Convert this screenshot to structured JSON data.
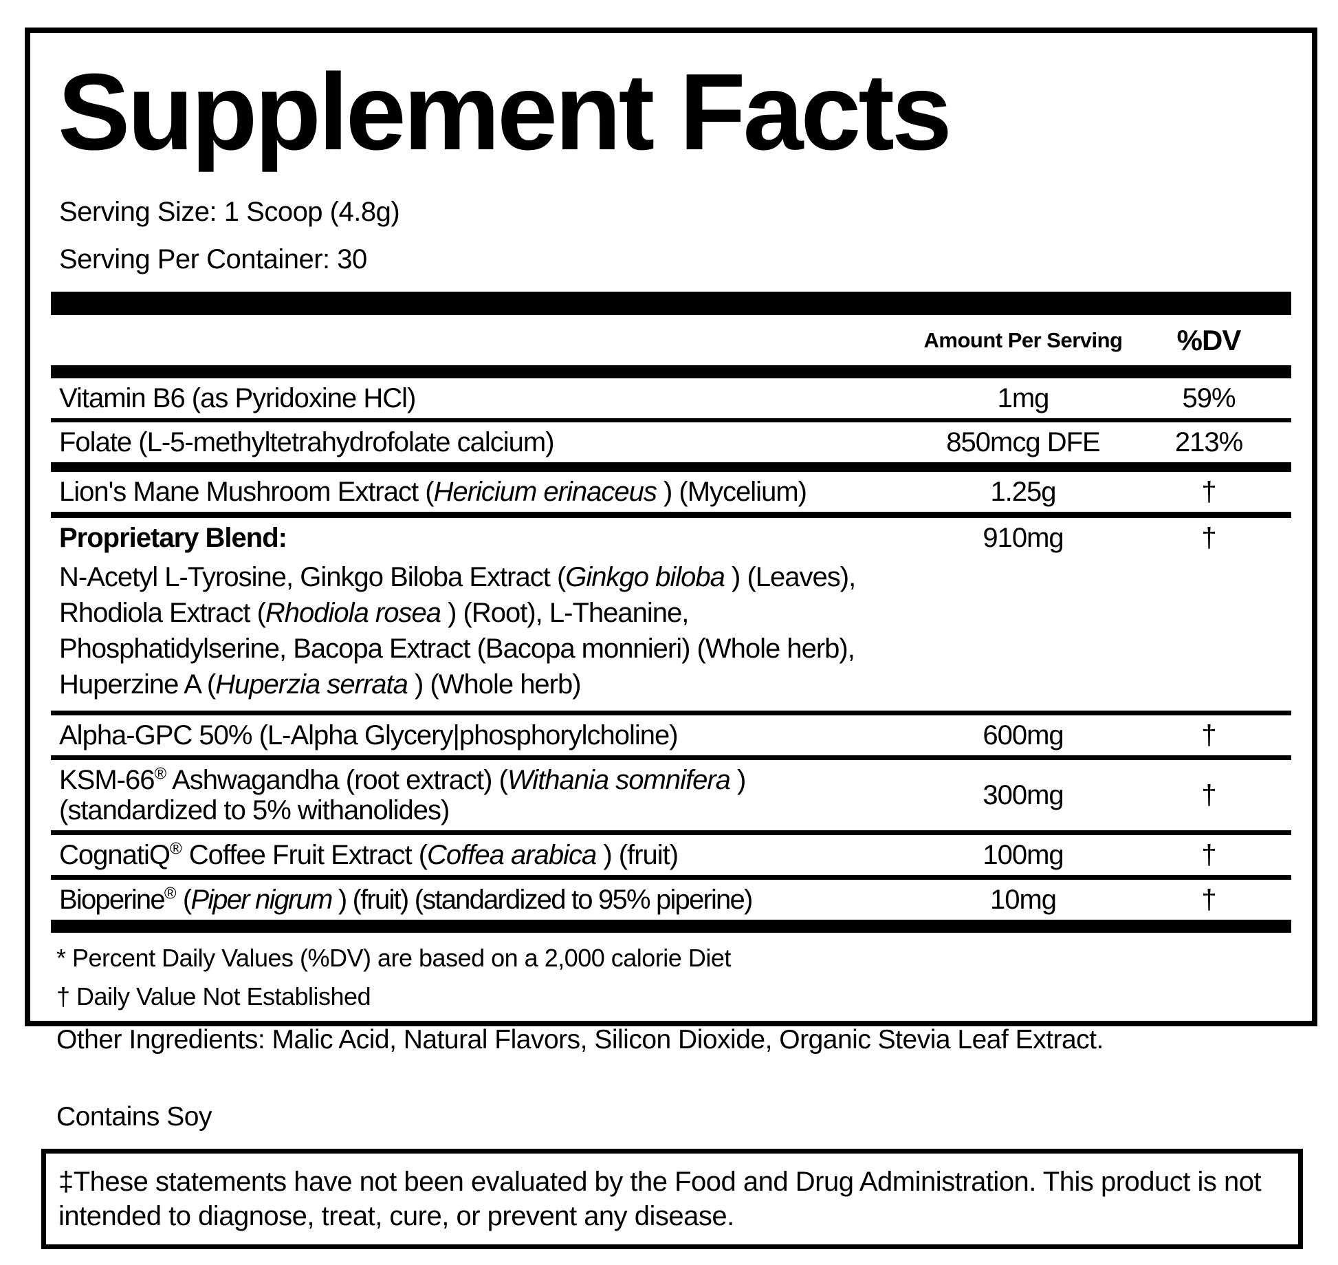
{
  "colors": {
    "ink": "#000000",
    "background": "#ffffff"
  },
  "panel": {
    "title": "Supplement Facts",
    "serving_size": "Serving Size: 1 Scoop (4.8g)",
    "servings_per_container": "Serving Per Container: 30",
    "columns": {
      "amount": "Amount Per Serving",
      "dv": "%DV"
    },
    "rows": {
      "vitamin_b6": {
        "name": "Vitamin B6 (as Pyridoxine HCl)",
        "amount": "1mg",
        "dv": "59%"
      },
      "folate": {
        "name": "Folate (L-5-methyltetrahydrofolate calcium)",
        "amount": "850mcg DFE",
        "dv": "213%"
      },
      "lions_mane": {
        "name_pre": "Lion's Mane Mushroom Extract (",
        "species": "Hericium erinaceus",
        "name_post": " ) (Mycelium)",
        "amount": "1.25g",
        "dv": "†"
      },
      "proprietary_blend": {
        "label": "Proprietary Blend:",
        "amount": "910mg",
        "dv": "†",
        "desc_1": "N-Acetyl L-Tyrosine, Ginkgo Biloba Extract (",
        "desc_species_1": "Ginkgo biloba",
        "desc_2": " ) (Leaves), Rhodiola Extract (",
        "desc_species_2": "Rhodiola rosea",
        "desc_3": " ) (Root), L-Theanine, Phosphatidylserine, Bacopa Extract (Bacopa monnieri) (Whole herb), Huperzine A (",
        "desc_species_3": "Huperzia serrata",
        "desc_4": " ) (Whole herb)"
      },
      "alpha_gpc": {
        "name": "Alpha-GPC 50% (L-Alpha Glycery|phosphorylcholine)",
        "amount": "600mg",
        "dv": "†"
      },
      "ksm66": {
        "brand": "KSM-66",
        "reg": "®",
        "name_mid": " Ashwagandha (root extract) (",
        "species": "Withania somnifera",
        "name_post": " )",
        "name_line2": "(standardized to 5% withanolides)",
        "amount": "300mg",
        "dv": "†"
      },
      "cognatiq": {
        "brand": "CognatiQ",
        "reg": "®",
        "name_mid": " Coffee Fruit Extract (",
        "species": "Coffea arabica",
        "name_post": " ) (fruit)",
        "amount": "100mg",
        "dv": "†"
      },
      "bioperine": {
        "brand": "Bioperine",
        "reg": "®",
        "name_mid": " (",
        "species": "Piper nigrum",
        "name_post": " ) (fruit) (standardized to 95% piperine)",
        "amount": "10mg",
        "dv": "†"
      }
    },
    "footnote_dv": "* Percent Daily Values (%DV) are based on a 2,000 calorie Diet",
    "footnote_dagger": "† Daily Value Not Established"
  },
  "other_ingredients": "Other Ingredients: Malic Acid, Natural Flavors, Silicon Dioxide, Organic Stevia Leaf Extract.",
  "allergen": "Contains Soy",
  "disclaimer": "‡These statements have not been evaluated by the Food and Drug Administration. This product is not intended to diagnose, treat, cure, or prevent any disease."
}
